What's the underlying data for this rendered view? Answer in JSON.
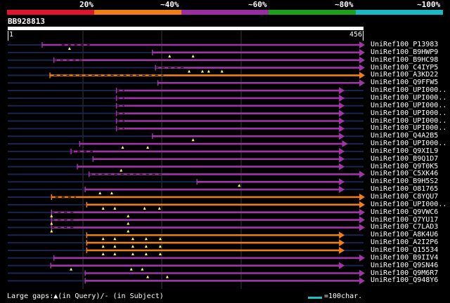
{
  "identity_scale": {
    "labels": [
      "20%",
      "~40%",
      "~60%",
      "~80%",
      "~100%"
    ],
    "colors": [
      "#e0142c",
      "#f07e14",
      "#9a2ea0",
      "#1aa01a",
      "#19b9c3"
    ]
  },
  "query": {
    "id": "BB928813",
    "start": "1",
    "end": "456",
    "length": 456
  },
  "hits": [
    {
      "name": "UniRef100_P13983",
      "color": "#a034a8",
      "start": 45,
      "end": 456,
      "gaps": [
        [
          70,
          110
        ]
      ],
      "marks": [
        80
      ]
    },
    {
      "name": "UniRef100_B9HWP9",
      "color": "#a034a8",
      "start": 186,
      "end": 456,
      "gaps": [],
      "marks": [
        208,
        238
      ]
    },
    {
      "name": "UniRef100_B9HC98",
      "color": "#a034a8",
      "start": 60,
      "end": 456,
      "gaps": [
        [
          60,
          100
        ]
      ],
      "marks": []
    },
    {
      "name": "UniRef100_C4IYP5",
      "color": "#a034a8",
      "start": 190,
      "end": 456,
      "gaps": [
        [
          190,
          230
        ]
      ],
      "marks": [
        233,
        250,
        258,
        275
      ]
    },
    {
      "name": "UniRef100_A3KD22",
      "color": "#f07e14",
      "start": 55,
      "end": 456,
      "gaps": [
        [
          60,
          200
        ]
      ],
      "marks": []
    },
    {
      "name": "UniRef100_Q9FFW5",
      "color": "#a034a8",
      "start": 193,
      "end": 456,
      "gaps": [],
      "marks": []
    },
    {
      "name": "UniRef100_UPI000..",
      "color": "#a034a8",
      "start": 140,
      "end": 430,
      "gaps": [
        [
          140,
          150
        ]
      ],
      "marks": []
    },
    {
      "name": "UniRef100_UPI000..",
      "color": "#a034a8",
      "start": 140,
      "end": 430,
      "gaps": [
        [
          140,
          150
        ]
      ],
      "marks": []
    },
    {
      "name": "UniRef100_UPI000..",
      "color": "#a034a8",
      "start": 140,
      "end": 430,
      "gaps": [
        [
          140,
          150
        ]
      ],
      "marks": []
    },
    {
      "name": "UniRef100_UPI000..",
      "color": "#a034a8",
      "start": 140,
      "end": 430,
      "gaps": [
        [
          140,
          150
        ]
      ],
      "marks": []
    },
    {
      "name": "UniRef100_UPI000..",
      "color": "#a034a8",
      "start": 140,
      "end": 430,
      "gaps": [
        [
          140,
          150
        ]
      ],
      "marks": []
    },
    {
      "name": "UniRef100_UPI000..",
      "color": "#a034a8",
      "start": 140,
      "end": 430,
      "gaps": [
        [
          140,
          150
        ]
      ],
      "marks": []
    },
    {
      "name": "UniRef100_Q4A2B5",
      "color": "#a034a8",
      "start": 186,
      "end": 430,
      "gaps": [],
      "marks": [
        238
      ]
    },
    {
      "name": "UniRef100_UPI000..",
      "color": "#a034a8",
      "start": 93,
      "end": 434,
      "gaps": [],
      "marks": [
        148,
        180
      ]
    },
    {
      "name": "UniRef100_Q9XIL9",
      "color": "#a034a8",
      "start": 82,
      "end": 430,
      "gaps": [
        [
          82,
          110
        ]
      ],
      "marks": []
    },
    {
      "name": "UniRef100_B9Q1D7",
      "color": "#a034a8",
      "start": 110,
      "end": 430,
      "gaps": [],
      "marks": []
    },
    {
      "name": "UniRef100_Q9T0K5",
      "color": "#a034a8",
      "start": 90,
      "end": 430,
      "gaps": [],
      "marks": [
        146
      ]
    },
    {
      "name": "UniRef100_C5XK46",
      "color": "#a034a8",
      "start": 105,
      "end": 456,
      "gaps": [
        [
          105,
          200
        ]
      ],
      "marks": []
    },
    {
      "name": "UniRef100_B9H5S2",
      "color": "#a034a8",
      "start": 243,
      "end": 430,
      "gaps": [],
      "marks": [
        297
      ]
    },
    {
      "name": "UniRef100_O81765",
      "color": "#a034a8",
      "start": 100,
      "end": 430,
      "gaps": [],
      "marks": [
        119,
        134
      ]
    },
    {
      "name": "UniRef100_C8YQU7",
      "color": "#f07e14",
      "start": 57,
      "end": 456,
      "gaps": [
        [
          62,
          88
        ]
      ],
      "marks": []
    },
    {
      "name": "UniRef100_UPI000..",
      "color": "#f07e14",
      "start": 102,
      "end": 456,
      "gaps": [],
      "marks": [
        123,
        138,
        176,
        195
      ]
    },
    {
      "name": "UniRef100_Q9VWC6",
      "color": "#a034a8",
      "start": 57,
      "end": 456,
      "gaps": [
        [
          57,
          85
        ]
      ],
      "marks": [
        57,
        155
      ]
    },
    {
      "name": "UniRef100_Q7YU17",
      "color": "#a034a8",
      "start": 57,
      "end": 456,
      "gaps": [
        [
          57,
          85
        ]
      ],
      "marks": [
        57,
        155
      ]
    },
    {
      "name": "UniRef100_C7LAD3",
      "color": "#a034a8",
      "start": 57,
      "end": 456,
      "gaps": [
        [
          57,
          85
        ]
      ],
      "marks": [
        57,
        155
      ]
    },
    {
      "name": "UniRef100_A8K4U6",
      "color": "#f07e14",
      "start": 102,
      "end": 430,
      "gaps": [],
      "marks": [
        123,
        138,
        161,
        178,
        196
      ]
    },
    {
      "name": "UniRef100_A2I2P6",
      "color": "#f07e14",
      "start": 102,
      "end": 430,
      "gaps": [],
      "marks": [
        123,
        138,
        161,
        178,
        196
      ]
    },
    {
      "name": "UniRef100_Q15534",
      "color": "#f07e14",
      "start": 102,
      "end": 430,
      "gaps": [],
      "marks": [
        123,
        138,
        161,
        178,
        196
      ]
    },
    {
      "name": "UniRef100_B9IIV4",
      "color": "#a034a8",
      "start": 60,
      "end": 456,
      "gaps": [],
      "marks": []
    },
    {
      "name": "UniRef100_Q9SN46",
      "color": "#a034a8",
      "start": 56,
      "end": 430,
      "gaps": [],
      "marks": [
        82,
        159,
        173
      ]
    },
    {
      "name": "UniRef100_Q9M6R7",
      "color": "#a034a8",
      "start": 100,
      "end": 456,
      "gaps": [],
      "marks": [
        180,
        205
      ]
    },
    {
      "name": "UniRef100_Q948Y6",
      "color": "#a034a8",
      "start": 100,
      "end": 456,
      "gaps": [],
      "marks": []
    }
  ],
  "footer": {
    "large_gaps_text": "Large gaps:▲(in Query)/- (in Subject)",
    "scale_text": "=100char.",
    "scale_color": "#19c3c3"
  }
}
